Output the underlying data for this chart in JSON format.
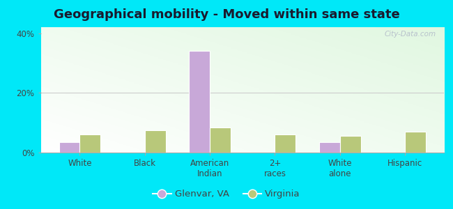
{
  "title": "Geographical mobility - Moved within same state",
  "categories": [
    "White",
    "Black",
    "American\nIndian",
    "2+\nraces",
    "White\nalone",
    "Hispanic"
  ],
  "glenvar_values": [
    3.5,
    0.0,
    34.0,
    0.0,
    3.5,
    0.0
  ],
  "virginia_values": [
    6.0,
    7.5,
    8.5,
    6.0,
    5.5,
    7.0
  ],
  "glenvar_color": "#c8a8d8",
  "virginia_color": "#b8c87a",
  "bar_edge_color": "#ffffff",
  "ylim": [
    0,
    42
  ],
  "yticks": [
    0,
    20,
    40
  ],
  "ytick_labels": [
    "0%",
    "20%",
    "40%"
  ],
  "legend_labels": [
    "Glenvar, VA",
    "Virginia"
  ],
  "background_color": "#00e8f8",
  "title_fontsize": 13,
  "tick_fontsize": 8.5,
  "legend_fontsize": 9.5,
  "bar_width": 0.32,
  "watermark": "City-Data.com"
}
